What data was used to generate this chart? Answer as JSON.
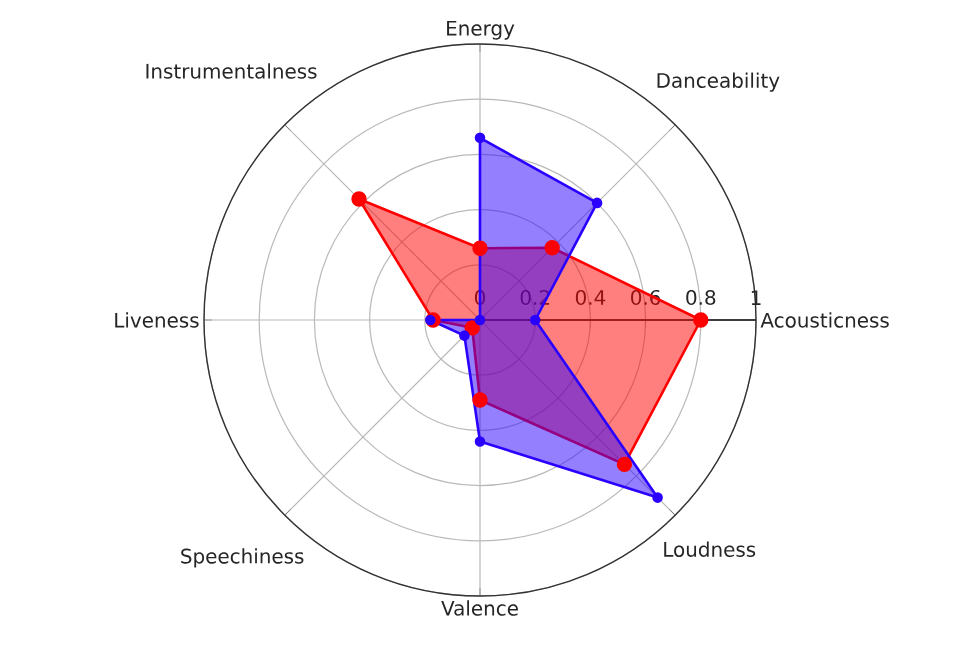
{
  "chart_data": {
    "type": "radar",
    "categories": [
      "Energy",
      "Danceability",
      "Acousticness",
      "Loudness",
      "Valence",
      "Speechiness",
      "Liveness",
      "Instrumentalness"
    ],
    "ylim": [
      0,
      1
    ],
    "yticks": [
      0,
      0.2,
      0.4,
      0.6,
      0.8,
      1
    ],
    "grid": true,
    "marker": "circle",
    "series": [
      {
        "color": "#ff0000",
        "values": [
          0.26,
          0.37,
          0.8,
          0.74,
          0.29,
          0.04,
          0.17,
          0.62
        ]
      },
      {
        "color": "#2a00ff",
        "values": [
          0.66,
          0.6,
          0.2,
          0.91,
          0.44,
          0.08,
          0.18,
          0.0
        ]
      }
    ]
  }
}
